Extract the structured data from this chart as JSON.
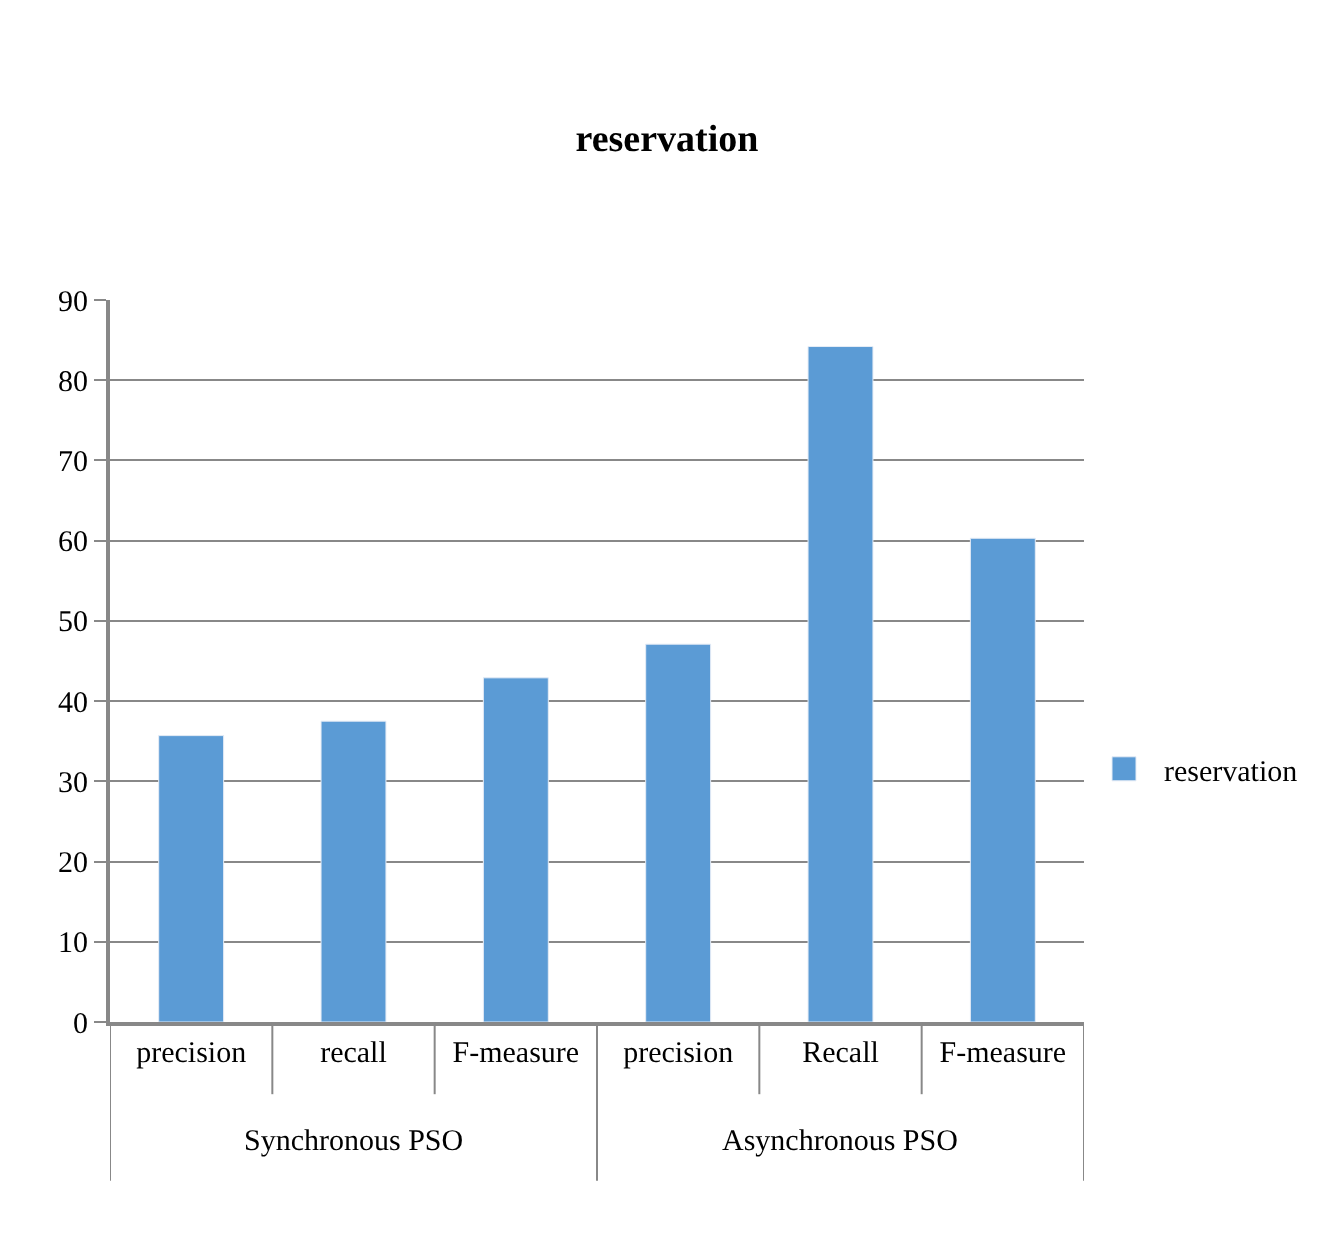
{
  "chart_data": {
    "type": "bar",
    "title": "reservation",
    "categories": [
      "precision",
      "recall",
      "F-measure",
      "precision",
      "Recall",
      "F-measure"
    ],
    "series": [
      {
        "name": "reservation",
        "color": "#5b9bd5",
        "values": [
          35.7,
          37.5,
          42.9,
          47.1,
          84.2,
          60.3
        ]
      }
    ],
    "annotations": [
      "Synchronous PSO",
      "Asynchronous PSO"
    ],
    "ylim": [
      0,
      90
    ],
    "yticks": [
      0,
      10,
      20,
      30,
      40,
      50,
      60,
      70,
      80,
      90
    ],
    "grid": "y",
    "legend": "right"
  }
}
